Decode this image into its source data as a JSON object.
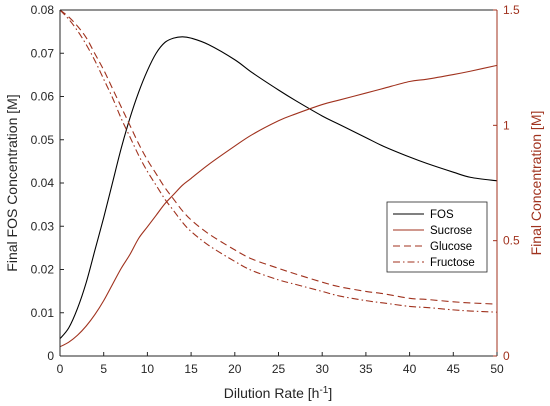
{
  "chart_data": {
    "type": "line",
    "xlabel": "Dilution Rate [h",
    "xlabel_sup": "-1",
    "xlabel_close": "]",
    "ylabel_left": "Final FOS Concentration [M]",
    "ylabel_right": "Final Concentration [M]",
    "xlim": [
      0,
      50
    ],
    "ylim_left": [
      0,
      0.08
    ],
    "ylim_right": [
      0,
      1.5
    ],
    "grid": false,
    "legend_position": "right",
    "x_ticks": [
      "0",
      "5",
      "10",
      "15",
      "20",
      "25",
      "30",
      "35",
      "40",
      "45",
      "50"
    ],
    "y_left_ticks": [
      "0",
      "0.01",
      "0.02",
      "0.03",
      "0.04",
      "0.05",
      "0.06",
      "0.07",
      "0.08"
    ],
    "y_right_ticks": [
      "0",
      "0.5",
      "1",
      "1.5"
    ],
    "colors": {
      "fos": "#000000",
      "right_axis": "#a0321e"
    },
    "x": [
      0,
      1,
      2,
      3,
      4,
      5,
      6,
      7,
      8,
      9,
      10,
      11,
      12,
      13,
      14,
      15,
      17,
      20,
      22,
      25,
      27,
      30,
      32,
      35,
      37,
      40,
      42,
      45,
      47,
      50
    ],
    "series": [
      {
        "name": "FOS",
        "axis": "left",
        "color": "#000000",
        "dash": "",
        "values": [
          0.004,
          0.0065,
          0.011,
          0.017,
          0.0245,
          0.032,
          0.04,
          0.048,
          0.055,
          0.061,
          0.066,
          0.07,
          0.0725,
          0.0735,
          0.0738,
          0.0735,
          0.072,
          0.0685,
          0.0655,
          0.0615,
          0.059,
          0.0555,
          0.0535,
          0.0505,
          0.0485,
          0.046,
          0.0445,
          0.0425,
          0.0413,
          0.0405
        ]
      },
      {
        "name": "Sucrose",
        "axis": "right",
        "color": "#a0321e",
        "dash": "",
        "values": [
          0.04,
          0.06,
          0.09,
          0.13,
          0.18,
          0.24,
          0.31,
          0.38,
          0.44,
          0.51,
          0.56,
          0.61,
          0.66,
          0.7,
          0.74,
          0.77,
          0.83,
          0.91,
          0.96,
          1.02,
          1.05,
          1.09,
          1.11,
          1.14,
          1.16,
          1.19,
          1.2,
          1.22,
          1.235,
          1.26
        ]
      },
      {
        "name": "Glucose",
        "axis": "right",
        "color": "#a0321e",
        "dash": "7,4",
        "values": [
          1.5,
          1.47,
          1.43,
          1.38,
          1.31,
          1.24,
          1.16,
          1.08,
          1.0,
          0.92,
          0.85,
          0.79,
          0.73,
          0.68,
          0.63,
          0.59,
          0.53,
          0.46,
          0.42,
          0.38,
          0.355,
          0.32,
          0.3,
          0.28,
          0.27,
          0.25,
          0.245,
          0.235,
          0.23,
          0.225
        ]
      },
      {
        "name": "Fructose",
        "axis": "right",
        "color": "#a0321e",
        "dash": "7,3,1.5,3",
        "values": [
          1.5,
          1.46,
          1.41,
          1.35,
          1.28,
          1.2,
          1.12,
          1.03,
          0.95,
          0.87,
          0.8,
          0.74,
          0.68,
          0.63,
          0.58,
          0.54,
          0.48,
          0.41,
          0.37,
          0.33,
          0.31,
          0.28,
          0.26,
          0.24,
          0.23,
          0.215,
          0.21,
          0.2,
          0.195,
          0.19
        ]
      }
    ]
  }
}
